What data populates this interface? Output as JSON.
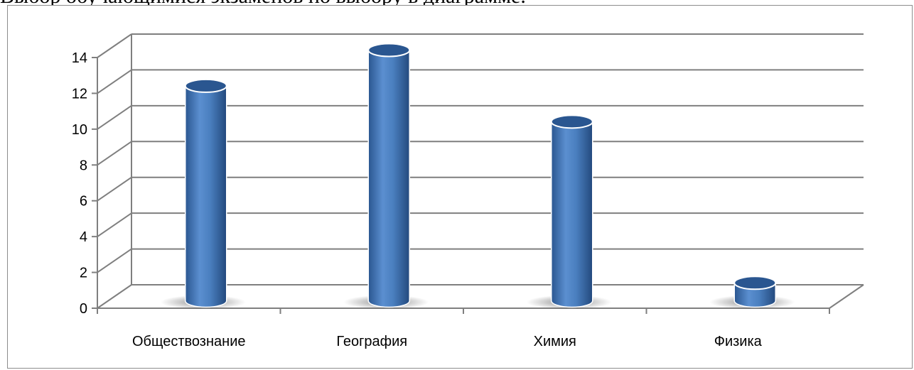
{
  "page": {
    "caption_fragment": "Выбор обучающимися экзаменов по выбору в диаграмме."
  },
  "chart_data": {
    "type": "bar",
    "categories": [
      "Обществознание",
      "География",
      "Химия",
      "Физика"
    ],
    "values": [
      12,
      14,
      10,
      1
    ],
    "title": "",
    "xlabel": "",
    "ylabel": "",
    "ylim": [
      0,
      14
    ],
    "yticks": [
      0,
      2,
      4,
      6,
      8,
      10,
      12,
      14
    ],
    "grid": true,
    "legend": "none",
    "style": "3d-cylinder",
    "colors": {
      "bar": "#4a7fbf",
      "bar_dark": "#2a5690",
      "bar_light": "#7fa9d8",
      "grid": "#7f7f7f"
    }
  }
}
